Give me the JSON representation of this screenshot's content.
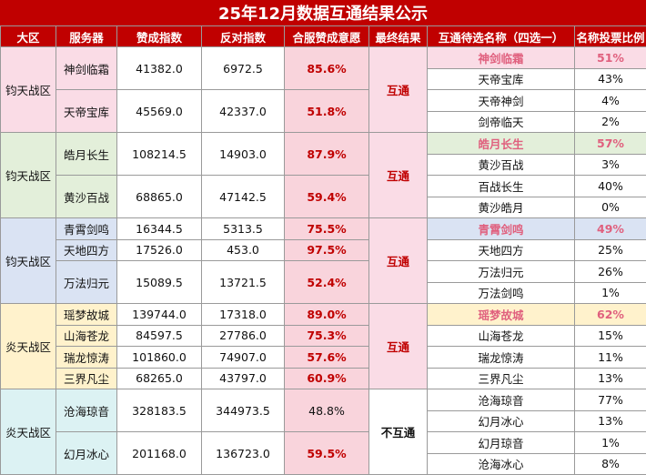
{
  "title": "25年12月数据互通结果公示",
  "headers": [
    "大区",
    "服务器",
    "赞成指数",
    "反对指数",
    "合服赞成意愿",
    "最终结果",
    "互通待选名称（四选一）",
    "名称投票比例"
  ],
  "groups": [
    {
      "region": "钧天战区",
      "result": "互通",
      "servers": [
        {
          "name": "神剑临霜",
          "for": "41382.0",
          "against": "6972.5",
          "rate": "85.6%"
        },
        {
          "name": "天帝宝库",
          "for": "45569.0",
          "against": "42337.0",
          "rate": "51.8%"
        }
      ],
      "candidates": [
        {
          "name": "神剑临霜",
          "pct": "51%"
        },
        {
          "name": "天帝宝库",
          "pct": "43%"
        },
        {
          "name": "天帝神剑",
          "pct": "4%"
        },
        {
          "name": "剑帝临天",
          "pct": "2%"
        }
      ]
    },
    {
      "region": "钧天战区",
      "result": "互通",
      "servers": [
        {
          "name": "皓月长生",
          "for": "108214.5",
          "against": "14903.0",
          "rate": "87.9%"
        },
        {
          "name": "黄沙百战",
          "for": "68865.0",
          "against": "47142.5",
          "rate": "59.4%"
        }
      ],
      "candidates": [
        {
          "name": "皓月长生",
          "pct": "57%"
        },
        {
          "name": "黄沙百战",
          "pct": "3%"
        },
        {
          "name": "百战长生",
          "pct": "40%"
        },
        {
          "name": "黄沙皓月",
          "pct": "0%"
        }
      ]
    },
    {
      "region": "钧天战区",
      "result": "互通",
      "servers": [
        {
          "name": "青霄剑鸣",
          "for": "16344.5",
          "against": "5313.5",
          "rate": "75.5%"
        },
        {
          "name": "天地四方",
          "for": "17526.0",
          "against": "453.0",
          "rate": "97.5%"
        },
        {
          "name": "万法归元",
          "for": "15089.5",
          "against": "13721.5",
          "rate": "52.4%"
        }
      ],
      "candidates": [
        {
          "name": "青霄剑鸣",
          "pct": "49%"
        },
        {
          "name": "天地四方",
          "pct": "25%"
        },
        {
          "name": "万法归元",
          "pct": "26%"
        },
        {
          "name": "万法剑鸣",
          "pct": "1%"
        }
      ]
    },
    {
      "region": "炎天战区",
      "result": "互通",
      "servers": [
        {
          "name": "瑶梦故城",
          "for": "139744.0",
          "against": "17318.0",
          "rate": "89.0%"
        },
        {
          "name": "山海苍龙",
          "for": "84597.5",
          "against": "27786.0",
          "rate": "75.3%"
        },
        {
          "name": "瑞龙惊涛",
          "for": "101860.0",
          "against": "74907.0",
          "rate": "57.6%"
        },
        {
          "name": "三界凡尘",
          "for": "68265.0",
          "against": "43797.0",
          "rate": "60.9%"
        }
      ],
      "candidates": [
        {
          "name": "瑶梦故城",
          "pct": "62%"
        },
        {
          "name": "山海苍龙",
          "pct": "15%"
        },
        {
          "name": "瑞龙惊涛",
          "pct": "11%"
        },
        {
          "name": "三界凡尘",
          "pct": "13%"
        }
      ]
    },
    {
      "region": "炎天战区",
      "result": "不互通",
      "servers": [
        {
          "name": "沧海琼音",
          "for": "328183.5",
          "against": "344973.5",
          "rate": "48.8%"
        },
        {
          "name": "幻月冰心",
          "for": "201168.0",
          "against": "136723.0",
          "rate": "59.5%"
        }
      ],
      "candidates": [
        {
          "name": "沧海琼音",
          "pct": "77%"
        },
        {
          "name": "幻月冰心",
          "pct": "13%"
        },
        {
          "name": "幻月琼音",
          "pct": "1%"
        },
        {
          "name": "沧海冰心",
          "pct": "8%"
        }
      ]
    }
  ],
  "colors": {
    "header_bg": "#c00000",
    "highlight_text": "#c00000",
    "winner_text": "#e0607e"
  }
}
